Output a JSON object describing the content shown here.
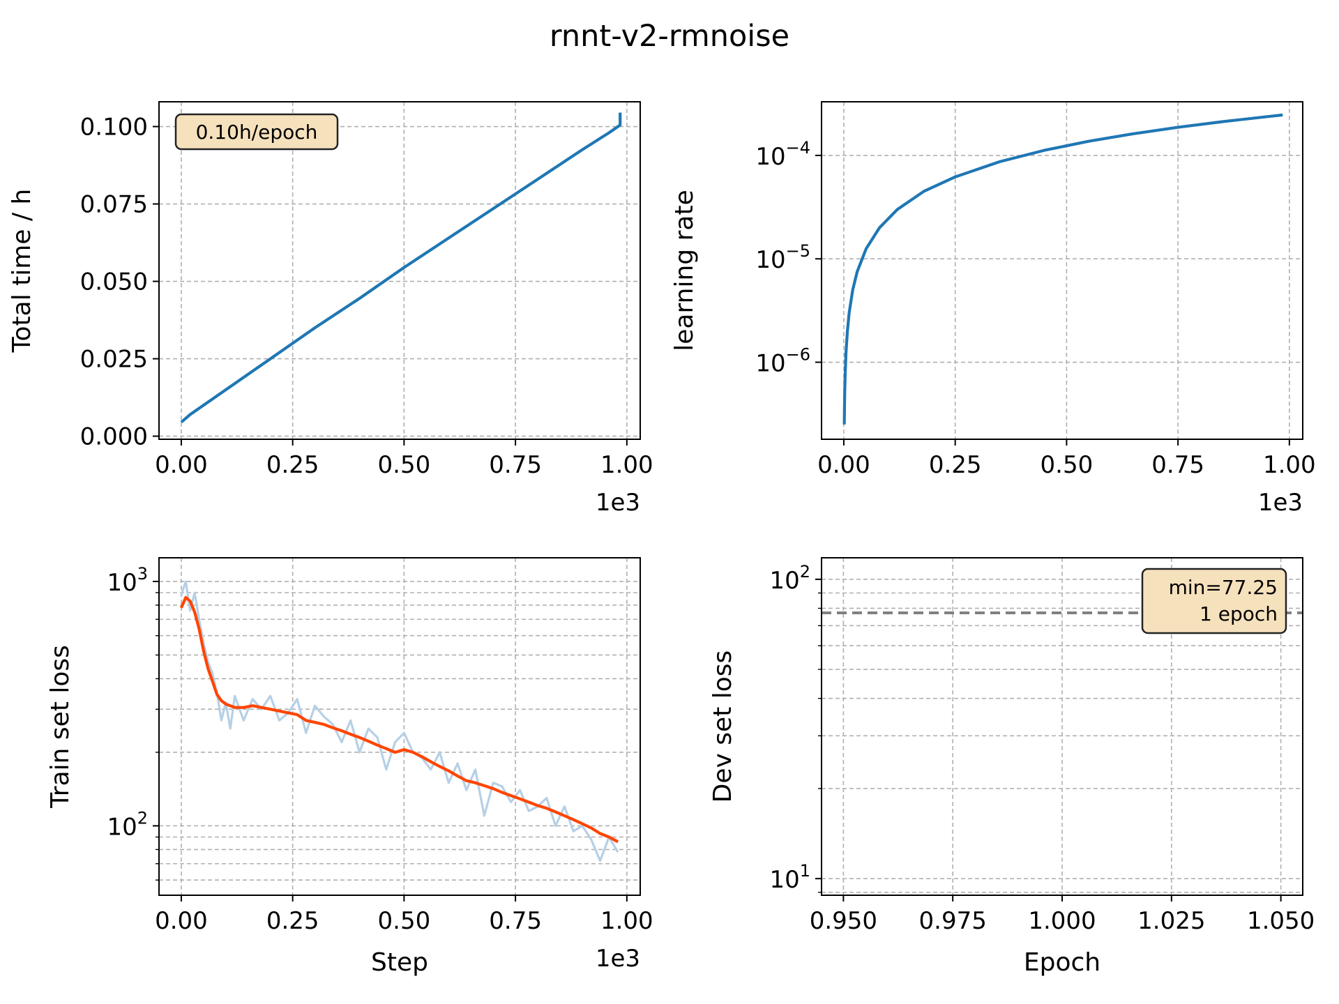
{
  "figure_title": "rnnt-v2-rmnoise",
  "colors": {
    "main": "#1f77b4",
    "raw": "#b6d0e6",
    "smooth": "#ff4500",
    "hline": "#808080",
    "box_fill": "#f6e1bd"
  },
  "chart_data": [
    {
      "id": "time",
      "type": "line",
      "xlabel": "",
      "ylabel": "Total time / h",
      "offset_label": "1e3",
      "xlim": [
        -0.05,
        1.03
      ],
      "ylim": [
        -0.001,
        0.108
      ],
      "x_ticks": [
        0,
        0.25,
        0.5,
        0.75,
        1.0
      ],
      "x_tick_labels": [
        "0.00",
        "0.25",
        "0.50",
        "0.75",
        "1.00"
      ],
      "y_ticks": [
        0,
        0.025,
        0.05,
        0.075,
        0.1
      ],
      "y_tick_labels": [
        "0.000",
        "0.025",
        "0.050",
        "0.075",
        "0.100"
      ],
      "yscale": "linear",
      "grid": true,
      "annotation": "0.10h/epoch",
      "series": [
        {
          "x": [
            0,
            0.02,
            0.1,
            0.2,
            0.3,
            0.4,
            0.5,
            0.6,
            0.7,
            0.8,
            0.9,
            0.96,
            0.98,
            0.985,
            0.985
          ],
          "y": [
            0.0045,
            0.007,
            0.015,
            0.025,
            0.035,
            0.0445,
            0.0545,
            0.064,
            0.0735,
            0.083,
            0.0925,
            0.098,
            0.1,
            0.1005,
            0.1045
          ]
        }
      ]
    },
    {
      "id": "lr",
      "type": "line",
      "xlabel": "",
      "ylabel": "learning rate",
      "offset_label": "1e3",
      "xlim": [
        -0.05,
        1.03
      ],
      "ylim": [
        1.8e-07,
        0.00033
      ],
      "x_ticks": [
        0,
        0.25,
        0.5,
        0.75,
        1.0
      ],
      "x_tick_labels": [
        "0.00",
        "0.25",
        "0.50",
        "0.75",
        "1.00"
      ],
      "y_ticks": [
        1e-06,
        1e-05,
        0.0001
      ],
      "y_tick_labels": [
        [
          "10",
          "−6"
        ],
        [
          "10",
          "−5"
        ],
        [
          "10",
          "−4"
        ]
      ],
      "yscale": "log",
      "grid": true,
      "series": [
        {
          "x": [
            0.001,
            0.002,
            0.003,
            0.005,
            0.008,
            0.012,
            0.02,
            0.03,
            0.05,
            0.08,
            0.12,
            0.18,
            0.25,
            0.35,
            0.45,
            0.55,
            0.65,
            0.75,
            0.85,
            0.95,
            0.985
          ],
          "y": [
            2.5e-07,
            5e-07,
            7.5e-07,
            1.25e-06,
            2e-06,
            3e-06,
            5e-06,
            7.5e-06,
            1.25e-05,
            2e-05,
            3e-05,
            4.5e-05,
            6.2e-05,
            8.7e-05,
            0.000112,
            0.000137,
            0.000162,
            0.000187,
            0.000212,
            0.000237,
            0.000246
          ]
        }
      ]
    },
    {
      "id": "train",
      "type": "line",
      "xlabel": "Step",
      "ylabel": "Train set loss",
      "offset_label": "1e3",
      "xlim": [
        -0.05,
        1.03
      ],
      "ylim": [
        52,
        1250
      ],
      "x_ticks": [
        0,
        0.25,
        0.5,
        0.75,
        1.0
      ],
      "x_tick_labels": [
        "0.00",
        "0.25",
        "0.50",
        "0.75",
        "1.00"
      ],
      "y_ticks": [
        100,
        1000
      ],
      "y_tick_labels": [
        [
          "10",
          "2"
        ],
        [
          "10",
          "3"
        ]
      ],
      "y_minor_ticks": [
        60,
        70,
        80,
        90,
        200,
        300,
        400,
        500,
        600,
        700,
        800,
        900
      ],
      "yscale": "log",
      "grid": true,
      "series": [
        {
          "name": "raw",
          "x": [
            0,
            0.01,
            0.02,
            0.03,
            0.04,
            0.05,
            0.06,
            0.07,
            0.08,
            0.09,
            0.1,
            0.11,
            0.12,
            0.14,
            0.16,
            0.18,
            0.2,
            0.22,
            0.24,
            0.26,
            0.28,
            0.3,
            0.32,
            0.34,
            0.36,
            0.38,
            0.4,
            0.42,
            0.44,
            0.46,
            0.48,
            0.5,
            0.52,
            0.54,
            0.56,
            0.58,
            0.6,
            0.62,
            0.64,
            0.66,
            0.68,
            0.7,
            0.72,
            0.74,
            0.76,
            0.78,
            0.8,
            0.82,
            0.84,
            0.86,
            0.88,
            0.9,
            0.92,
            0.94,
            0.96,
            0.98
          ],
          "y": [
            880,
            1000,
            760,
            900,
            700,
            560,
            470,
            420,
            350,
            270,
            320,
            250,
            340,
            270,
            330,
            300,
            340,
            270,
            290,
            330,
            240,
            310,
            280,
            260,
            220,
            270,
            200,
            250,
            230,
            170,
            220,
            240,
            200,
            190,
            170,
            200,
            150,
            180,
            140,
            170,
            110,
            150,
            145,
            125,
            140,
            115,
            120,
            130,
            100,
            120,
            95,
            100,
            88,
            72,
            90,
            78
          ]
        },
        {
          "name": "smoothed",
          "x": [
            0,
            0.01,
            0.02,
            0.03,
            0.04,
            0.05,
            0.06,
            0.07,
            0.08,
            0.09,
            0.1,
            0.12,
            0.14,
            0.16,
            0.18,
            0.2,
            0.22,
            0.24,
            0.26,
            0.28,
            0.3,
            0.32,
            0.34,
            0.36,
            0.38,
            0.4,
            0.42,
            0.44,
            0.46,
            0.48,
            0.5,
            0.52,
            0.54,
            0.56,
            0.58,
            0.6,
            0.62,
            0.64,
            0.66,
            0.68,
            0.7,
            0.72,
            0.74,
            0.76,
            0.78,
            0.8,
            0.82,
            0.84,
            0.86,
            0.88,
            0.9,
            0.92,
            0.94,
            0.96,
            0.98
          ],
          "y": [
            780,
            860,
            830,
            750,
            640,
            520,
            440,
            390,
            345,
            325,
            315,
            305,
            305,
            310,
            305,
            300,
            295,
            290,
            285,
            270,
            265,
            260,
            252,
            245,
            237,
            230,
            222,
            214,
            207,
            200,
            205,
            200,
            192,
            183,
            175,
            168,
            160,
            153,
            150,
            146,
            142,
            137,
            133,
            129,
            125,
            121,
            118,
            114,
            110,
            106,
            102,
            98,
            93,
            90,
            86
          ]
        }
      ]
    },
    {
      "id": "dev",
      "type": "line",
      "xlabel": "Epoch",
      "ylabel": "Dev set loss",
      "xlim": [
        0.945,
        1.055
      ],
      "ylim": [
        8.8,
        118
      ],
      "x_ticks": [
        0.95,
        0.975,
        1.0,
        1.025,
        1.05
      ],
      "x_tick_labels": [
        "0.950",
        "0.975",
        "1.000",
        "1.025",
        "1.050"
      ],
      "y_ticks": [
        10,
        100
      ],
      "y_tick_labels": [
        [
          "10",
          "1"
        ],
        [
          "10",
          "2"
        ]
      ],
      "y_minor_ticks": [
        9,
        20,
        30,
        40,
        50,
        60,
        70,
        80,
        90
      ],
      "yscale": "log",
      "grid": true,
      "hline": 77.25,
      "annotation_lines": [
        "min=77.25",
        "1 epoch"
      ]
    }
  ]
}
